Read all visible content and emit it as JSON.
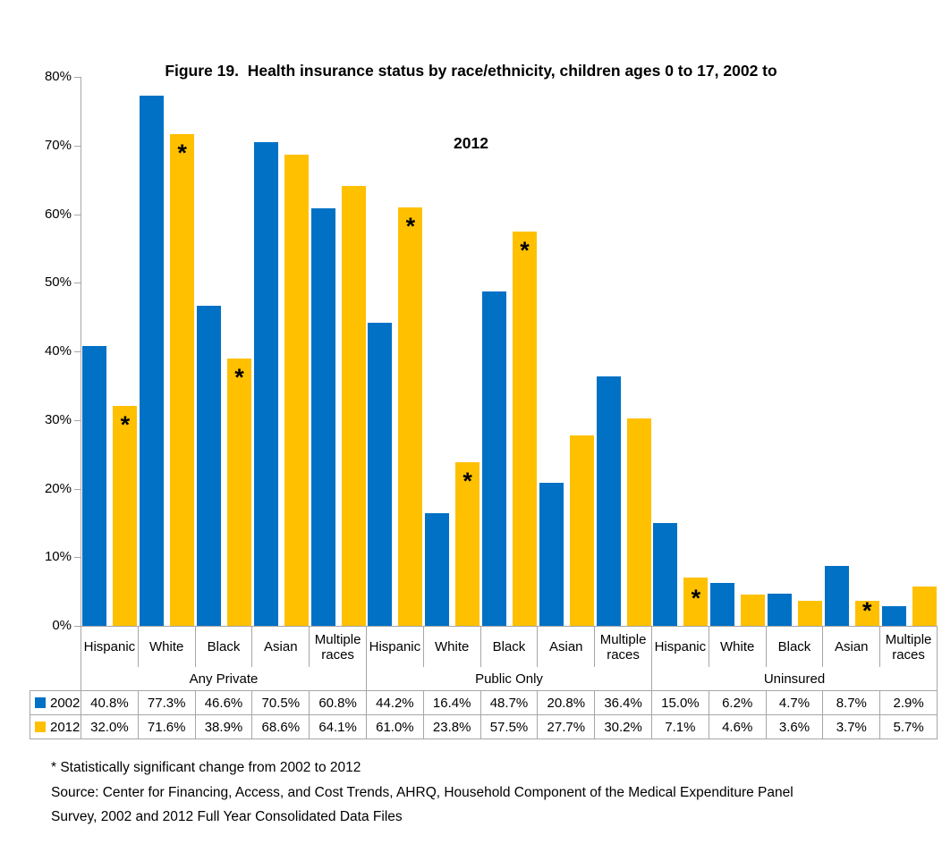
{
  "header": {
    "title_line1": "Figure 19.  Health insurance status by race/ethnicity, children ages 0 to 17, 2002 to",
    "title_line2": "2012"
  },
  "chart_data": {
    "type": "bar",
    "title": "Figure 19. Health insurance status by race/ethnicity, children ages 0 to 17, 2002 to 2012",
    "ylim": [
      0,
      80
    ],
    "ytick_labels": [
      "0%",
      "10%",
      "20%",
      "30%",
      "40%",
      "50%",
      "60%",
      "70%",
      "80%"
    ],
    "grid": false,
    "legend_position": "table-left",
    "groups": [
      {
        "label": "Any Private",
        "categories": [
          "Hispanic",
          "White",
          "Black",
          "Asian",
          "Multiple races"
        ]
      },
      {
        "label": "Public Only",
        "categories": [
          "Hispanic",
          "White",
          "Black",
          "Asian",
          "Multiple races"
        ]
      },
      {
        "label": "Uninsured",
        "categories": [
          "Hispanic",
          "White",
          "Black",
          "Asian",
          "Multiple races"
        ]
      }
    ],
    "series": [
      {
        "name": "2002",
        "color": "#0071C5",
        "values": [
          40.8,
          77.3,
          46.6,
          70.5,
          60.8,
          44.2,
          16.4,
          48.7,
          20.8,
          36.4,
          15.0,
          6.2,
          4.7,
          8.7,
          2.9
        ]
      },
      {
        "name": "2012",
        "color": "#FFC000",
        "values": [
          32.0,
          71.6,
          38.9,
          68.6,
          64.1,
          61.0,
          23.8,
          57.5,
          27.7,
          30.2,
          7.1,
          4.6,
          3.6,
          3.7,
          5.7
        ]
      }
    ],
    "significance_marker": "*",
    "significant_2012_category_indices": [
      0,
      1,
      2,
      5,
      6,
      7,
      10,
      13
    ]
  },
  "footnotes": {
    "significance": "* Statistically significant change from 2002 to 2012",
    "source_line1": "Source: Center for Financing, Access, and Cost Trends, AHRQ, Household Component of the Medical Expenditure Panel",
    "source_line2": "Survey, 2002 and 2012 Full Year Consolidated Data Files"
  },
  "colors": {
    "series_2002": "#0071C5",
    "series_2012": "#FFC000",
    "line_grey": "#A6A6A6",
    "text": "#000000"
  }
}
